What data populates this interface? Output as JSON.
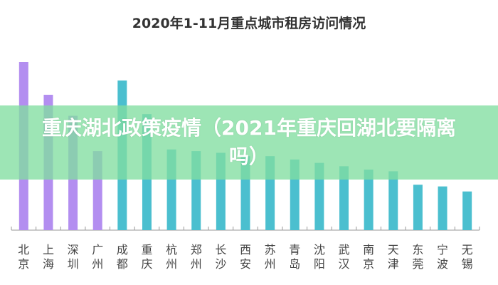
{
  "chart_data": {
    "type": "bar",
    "title": "2020年1-11月重点城市租房访问情况",
    "categories": [
      "北京",
      "上海",
      "深圳",
      "广州",
      "成都",
      "重庆",
      "杭州",
      "郑州",
      "长沙",
      "西安",
      "苏州",
      "青岛",
      "沈阳",
      "武汉",
      "南京",
      "天津",
      "东莞",
      "宁波",
      "无锡"
    ],
    "values": [
      100,
      80.5,
      68,
      47,
      89,
      69,
      48,
      47,
      46,
      44,
      44,
      42,
      40,
      38,
      36,
      35,
      27,
      26,
      23
    ],
    "value_note": "relative heights (no value axis shown)",
    "colors": [
      "#b38ef0",
      "#b38ef0",
      "#b38ef0",
      "#b38ef0",
      "#4bbfcf",
      "#4bbfcf",
      "#4bbfcf",
      "#4bbfcf",
      "#4bbfcf",
      "#4bbfcf",
      "#4bbfcf",
      "#4bbfcf",
      "#4bbfcf",
      "#4bbfcf",
      "#4bbfcf",
      "#4bbfcf",
      "#4bbfcf",
      "#4bbfcf",
      "#4bbfcf"
    ],
    "ylim": [
      0,
      100
    ],
    "grid": false,
    "legend": "none"
  },
  "banner": {
    "text": "重庆湖北政策疫情（2021年重庆回湖北要隔离吗）",
    "color": "#82dea0"
  }
}
